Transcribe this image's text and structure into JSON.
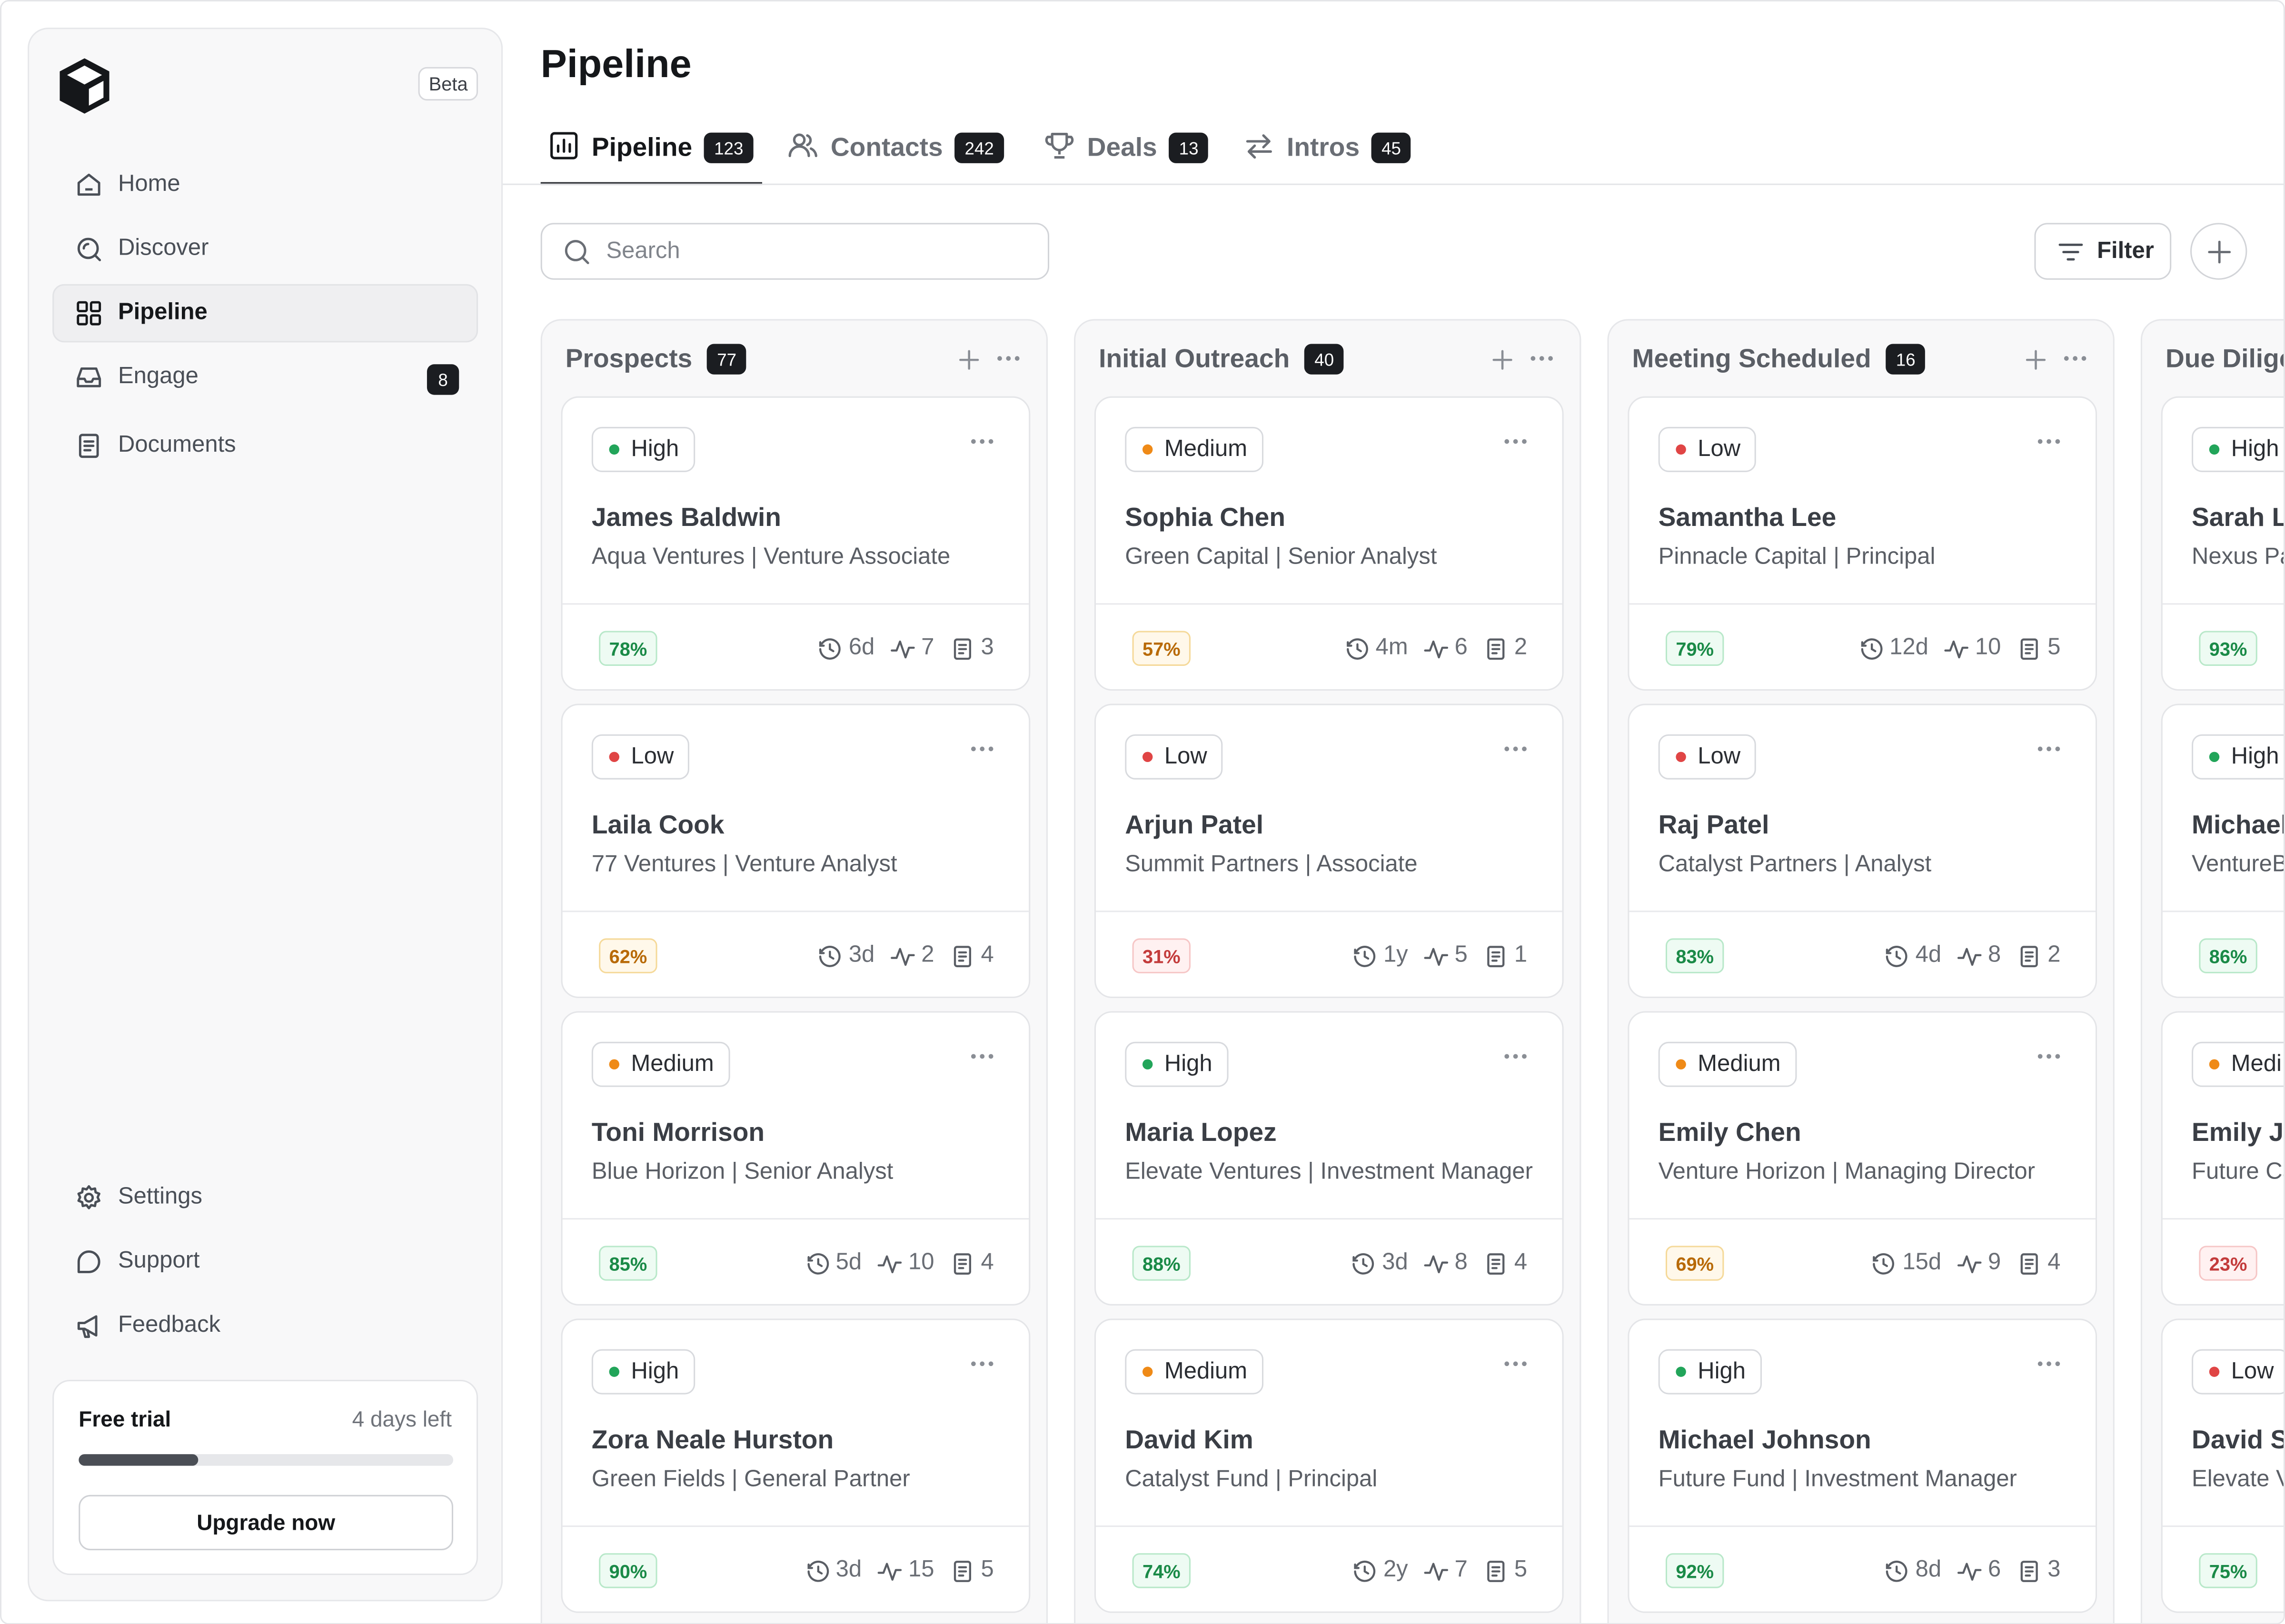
{
  "sidebar": {
    "beta": "Beta",
    "nav": [
      {
        "label": "Home"
      },
      {
        "label": "Discover"
      },
      {
        "label": "Pipeline"
      },
      {
        "label": "Engage",
        "count": "8"
      },
      {
        "label": "Documents"
      }
    ],
    "bottom_nav": [
      {
        "label": "Settings"
      },
      {
        "label": "Support"
      },
      {
        "label": "Feedback"
      }
    ],
    "trial": {
      "title": "Free trial",
      "days_left": "4 days left",
      "progress": 0.32,
      "upgrade": "Upgrade now"
    }
  },
  "main": {
    "title": "Pipeline",
    "tabs": [
      {
        "label": "Pipeline",
        "count": "123"
      },
      {
        "label": "Contacts",
        "count": "242"
      },
      {
        "label": "Deals",
        "count": "13"
      },
      {
        "label": "Intros",
        "count": "45"
      }
    ],
    "search_placeholder": "Search",
    "filter": "Filter"
  },
  "priority_colors": {
    "High": "#22a55a",
    "Medium": "#ef8a17",
    "Low": "#e04545"
  },
  "columns": [
    {
      "name": "Prospects",
      "count": "77",
      "cards": [
        {
          "priority": "High",
          "name": "James Baldwin",
          "company": "Aqua Ventures",
          "role": "Venture Associate",
          "score": "78%",
          "tone": "g",
          "time": "6d",
          "activity": "7",
          "docs": "3"
        },
        {
          "priority": "Low",
          "name": "Laila Cook",
          "company": "77 Ventures",
          "role": "Venture Analyst",
          "score": "62%",
          "tone": "o",
          "time": "3d",
          "activity": "2",
          "docs": "4"
        },
        {
          "priority": "Medium",
          "name": "Toni Morrison",
          "company": "Blue Horizon",
          "role": "Senior Analyst",
          "score": "85%",
          "tone": "g",
          "time": "5d",
          "activity": "10",
          "docs": "4"
        },
        {
          "priority": "High",
          "name": "Zora Neale Hurston",
          "company": "Green Fields",
          "role": "General Partner",
          "score": "90%",
          "tone": "g",
          "time": "3d",
          "activity": "15",
          "docs": "5"
        }
      ]
    },
    {
      "name": "Initial Outreach",
      "count": "40",
      "cards": [
        {
          "priority": "Medium",
          "name": "Sophia Chen",
          "company": "Green Capital",
          "role": "Senior Analyst",
          "score": "57%",
          "tone": "o",
          "time": "4m",
          "activity": "6",
          "docs": "2"
        },
        {
          "priority": "Low",
          "name": "Arjun Patel",
          "company": "Summit Partners",
          "role": "Associate",
          "score": "31%",
          "tone": "r",
          "time": "1y",
          "activity": "5",
          "docs": "1"
        },
        {
          "priority": "High",
          "name": "Maria Lopez",
          "company": "Elevate Ventures",
          "role": "Investment Manager",
          "score": "88%",
          "tone": "g",
          "time": "3d",
          "activity": "8",
          "docs": "4"
        },
        {
          "priority": "Medium",
          "name": "David Kim",
          "company": "Catalyst Fund",
          "role": "Principal",
          "score": "74%",
          "tone": "g",
          "time": "2y",
          "activity": "7",
          "docs": "5"
        }
      ]
    },
    {
      "name": "Meeting Scheduled",
      "count": "16",
      "cards": [
        {
          "priority": "Low",
          "name": "Samantha Lee",
          "company": "Pinnacle Capital",
          "role": "Principal",
          "score": "79%",
          "tone": "g",
          "time": "12d",
          "activity": "10",
          "docs": "5"
        },
        {
          "priority": "Low",
          "name": "Raj Patel",
          "company": "Catalyst Partners",
          "role": "Analyst",
          "score": "83%",
          "tone": "g",
          "time": "4d",
          "activity": "8",
          "docs": "2"
        },
        {
          "priority": "Medium",
          "name": "Emily Chen",
          "company": "Venture Horizon",
          "role": "Managing Director",
          "score": "69%",
          "tone": "o",
          "time": "15d",
          "activity": "9",
          "docs": "4"
        },
        {
          "priority": "High",
          "name": "Michael Johnson",
          "company": "Future Fund",
          "role": "Investment Manager",
          "score": "92%",
          "tone": "g",
          "time": "8d",
          "activity": "6",
          "docs": "3"
        }
      ]
    },
    {
      "name": "Due Dilige",
      "cards": [
        {
          "priority": "High",
          "name": "Sarah L",
          "company": "Nexus Pa",
          "role": "",
          "score": "93%",
          "tone": "g"
        },
        {
          "priority": "High",
          "name": "Michael",
          "company": "VentureB",
          "role": "",
          "score": "86%",
          "tone": "g"
        },
        {
          "priority": "Medi",
          "dot": "Medium",
          "name": "Emily Jo",
          "company": "Future Ca",
          "role": "",
          "score": "23%",
          "tone": "r"
        },
        {
          "priority": "Low",
          "name": "David S",
          "company": "Elevate V",
          "role": "",
          "score": "75%",
          "tone": "g"
        }
      ]
    }
  ]
}
